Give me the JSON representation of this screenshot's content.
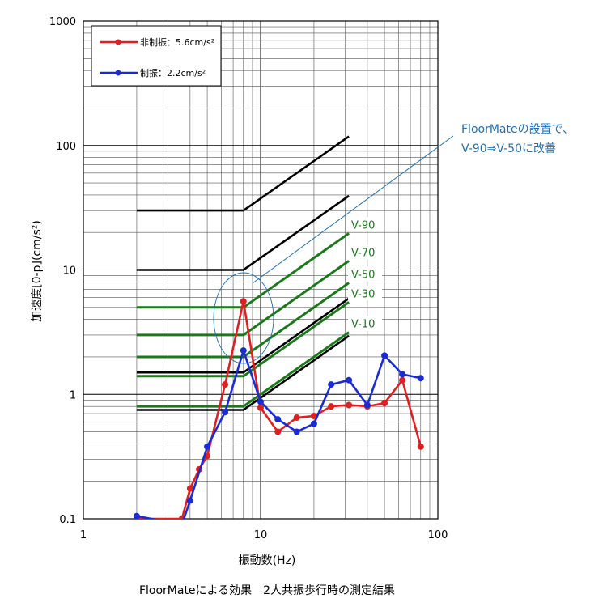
{
  "chart_data": {
    "type": "line",
    "caption": "FloorMateによる効果　2人共振歩行時の測定結果",
    "xlabel": "振動数(Hz)",
    "ylabel": "加速度[0-p](cm/s²)",
    "x_scale": "log",
    "y_scale": "log",
    "xlim": [
      1,
      100
    ],
    "ylim": [
      0.1,
      1000
    ],
    "x_ticks": [
      "1",
      "10",
      "100"
    ],
    "y_ticks": [
      "0.1",
      "1",
      "10",
      "100",
      "1000"
    ],
    "grid": true,
    "legend_position": "top-left",
    "series": [
      {
        "name": "非制振：5.6cm/s²",
        "color": "#e02020",
        "x": [
          2.0,
          3.6,
          4.0,
          4.5,
          5.0,
          6.3,
          8.0,
          10.0,
          12.5,
          16.0,
          20.0,
          25.0,
          31.5,
          40.0,
          50.0,
          63.0,
          80.0
        ],
        "y": [
          0.1,
          0.1,
          0.175,
          0.25,
          0.32,
          1.2,
          5.6,
          0.78,
          0.5,
          0.65,
          0.67,
          0.8,
          0.82,
          0.8,
          0.85,
          1.3,
          0.38
        ]
      },
      {
        "name": "制振：2.2cm/s²",
        "color": "#1a2bd6",
        "x": [
          2.0,
          3.6,
          4.0,
          5.0,
          6.3,
          8.0,
          10.0,
          12.5,
          16.0,
          20.0,
          25.0,
          31.5,
          40.0,
          50.0,
          63.0,
          80.0
        ],
        "y": [
          0.105,
          0.09,
          0.14,
          0.38,
          0.72,
          2.25,
          0.87,
          0.63,
          0.5,
          0.58,
          1.2,
          1.3,
          0.82,
          2.05,
          1.45,
          1.35
        ]
      }
    ],
    "reference_curves": [
      {
        "label": "",
        "color": "#000000",
        "flat": 30
      },
      {
        "label": "",
        "color": "#000000",
        "flat": 10
      },
      {
        "label": "V-90",
        "color": "#1a7a1a",
        "flat": 5
      },
      {
        "label": "V-70",
        "color": "#1a7a1a",
        "flat": 3
      },
      {
        "label": "V-50",
        "color": "#1a7a1a",
        "flat": 2
      },
      {
        "label": "",
        "color": "#000000",
        "flat": 1.5
      },
      {
        "label": "V-30",
        "color": "#1a7a1a",
        "flat": 1.4
      },
      {
        "label": "V-10",
        "color": "#1a7a1a",
        "flat": 0.8
      },
      {
        "label": "",
        "color": "#000000",
        "flat": 0.75
      }
    ],
    "annotation": {
      "lines": [
        "FloorMateの設置で、",
        "V-90⇒V-50に改善"
      ],
      "color": "#1f6fb5"
    }
  }
}
